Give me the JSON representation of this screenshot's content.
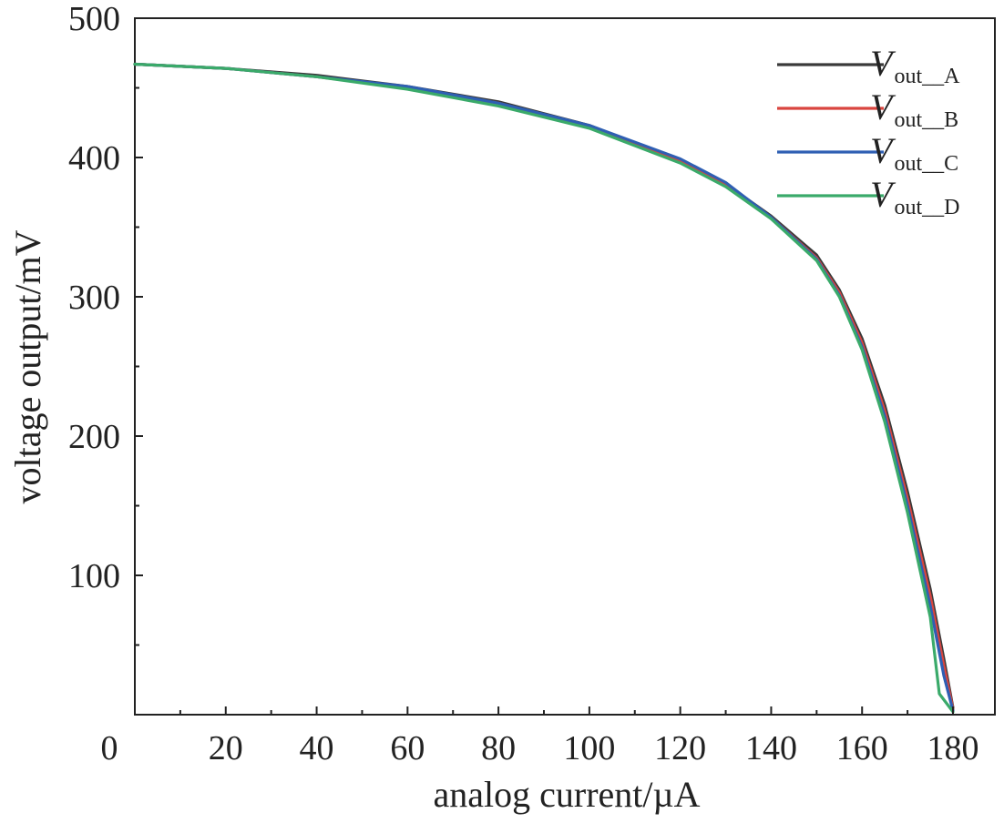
{
  "chart_data": {
    "type": "line",
    "title": "",
    "xlabel": "analog current/µA",
    "ylabel": "voltage output/mV",
    "xlim": [
      0,
      180
    ],
    "ylim": [
      0,
      500
    ],
    "x_ticks": [
      0,
      20,
      40,
      60,
      80,
      100,
      120,
      140,
      160,
      180
    ],
    "y_ticks": [
      100,
      200,
      300,
      400,
      500
    ],
    "x_tick_labels": [
      "0",
      "20",
      "40",
      "60",
      "80",
      "100",
      "120",
      "140",
      "160",
      "180"
    ],
    "y_tick_labels": [
      "100",
      "200",
      "300",
      "400",
      "500"
    ],
    "grid": false,
    "legend": "top-right",
    "series": [
      {
        "name": "V_out_A",
        "label_main": "V",
        "label_sub": "out__A",
        "color": "#3a3a3a",
        "x": [
          0,
          20,
          40,
          60,
          80,
          100,
          120,
          130,
          140,
          150,
          155,
          160,
          165,
          170,
          175,
          178,
          180
        ],
        "y": [
          467,
          464,
          459,
          451,
          440,
          423,
          398,
          381,
          358,
          330,
          305,
          270,
          222,
          160,
          90,
          40,
          5
        ]
      },
      {
        "name": "V_out_B",
        "label_main": "V",
        "label_sub": "out__B",
        "color": "#d9453f",
        "x": [
          0,
          20,
          40,
          60,
          80,
          100,
          120,
          130,
          140,
          150,
          155,
          160,
          165,
          170,
          175,
          178,
          180
        ],
        "y": [
          467,
          464,
          458,
          450,
          439,
          422,
          397,
          380,
          357,
          328,
          303,
          267,
          218,
          155,
          85,
          35,
          4
        ]
      },
      {
        "name": "V_out_C",
        "label_main": "V",
        "label_sub": "out__C",
        "color": "#2f5fb3",
        "x": [
          0,
          20,
          40,
          60,
          80,
          100,
          120,
          130,
          140,
          150,
          155,
          160,
          165,
          170,
          175,
          178,
          180
        ],
        "y": [
          467,
          464,
          458,
          451,
          439,
          423,
          399,
          382,
          357,
          327,
          301,
          264,
          214,
          150,
          78,
          28,
          3
        ]
      },
      {
        "name": "V_out_D",
        "label_main": "V",
        "label_sub": "out__D",
        "color": "#3aaa6a",
        "x": [
          0,
          20,
          40,
          60,
          80,
          100,
          120,
          130,
          140,
          150,
          155,
          160,
          165,
          170,
          175,
          177,
          180
        ],
        "y": [
          467,
          464,
          458,
          449,
          437,
          421,
          396,
          379,
          356,
          326,
          300,
          262,
          210,
          145,
          70,
          15,
          2
        ]
      }
    ]
  }
}
